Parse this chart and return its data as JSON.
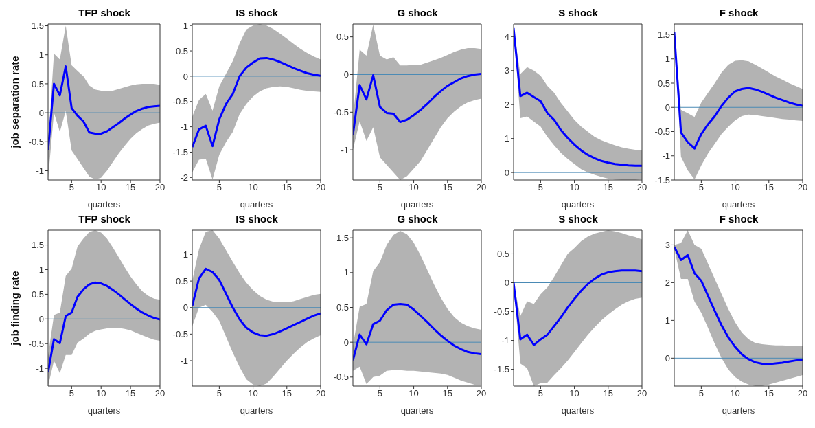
{
  "chart_data": [
    {
      "type": "line",
      "title": "TFP shock",
      "xlabel": "quarters",
      "ylabel": "job separation rate",
      "x": [
        1,
        2,
        3,
        4,
        5,
        6,
        7,
        8,
        9,
        10,
        11,
        12,
        13,
        14,
        15,
        16,
        17,
        18,
        19,
        20
      ],
      "xlim": [
        1,
        20
      ],
      "xticks": [
        5,
        10,
        15,
        20
      ],
      "ylim": [
        -1.16,
        1.53
      ],
      "yticks": [
        -1,
        -0.5,
        0,
        0.5,
        1,
        1.5
      ],
      "ref_lines": [
        {
          "axis": "y",
          "value": 0,
          "color": "#4a8ab5"
        }
      ],
      "series": [
        {
          "color": "#0000ff",
          "values": [
            -0.65,
            0.5,
            0.3,
            0.8,
            0.08,
            -0.05,
            -0.15,
            -0.34,
            -0.36,
            -0.36,
            -0.32,
            -0.25,
            -0.18,
            -0.1,
            -0.03,
            0.03,
            0.07,
            0.1,
            0.11,
            0.12
          ],
          "lower": [
            -1.15,
            0.0,
            -0.33,
            0.03,
            -0.65,
            -0.8,
            -0.95,
            -1.1,
            -1.15,
            -1.12,
            -1.0,
            -0.85,
            -0.7,
            -0.57,
            -0.45,
            -0.35,
            -0.28,
            -0.22,
            -0.19,
            -0.17
          ],
          "upper": [
            -0.55,
            1.02,
            0.92,
            1.5,
            0.82,
            0.72,
            0.63,
            0.47,
            0.4,
            0.38,
            0.37,
            0.38,
            0.41,
            0.44,
            0.47,
            0.49,
            0.5,
            0.5,
            0.5,
            0.48
          ]
        }
      ]
    },
    {
      "type": "line",
      "title": "IS shock",
      "xlabel": "quarters",
      "x": [
        1,
        2,
        3,
        4,
        5,
        6,
        7,
        8,
        9,
        10,
        11,
        12,
        13,
        14,
        15,
        16,
        17,
        18,
        19,
        20
      ],
      "xlim": [
        1,
        20
      ],
      "xticks": [
        5,
        10,
        15,
        20
      ],
      "ylim": [
        -2.05,
        1.03
      ],
      "yticks": [
        -2,
        -1.5,
        -1,
        -0.5,
        0,
        0.5,
        1
      ],
      "ref_lines": [
        {
          "axis": "y",
          "value": 0,
          "color": "#4a8ab5"
        }
      ],
      "series": [
        {
          "color": "#0000ff",
          "values": [
            -1.4,
            -1.05,
            -0.98,
            -1.38,
            -0.85,
            -0.55,
            -0.35,
            0.0,
            0.17,
            0.27,
            0.35,
            0.36,
            0.33,
            0.28,
            0.22,
            0.16,
            0.11,
            0.06,
            0.03,
            0.01
          ],
          "lower": [
            -1.9,
            -1.65,
            -1.63,
            -2.04,
            -1.55,
            -1.3,
            -1.1,
            -0.75,
            -0.55,
            -0.4,
            -0.3,
            -0.24,
            -0.21,
            -0.2,
            -0.21,
            -0.24,
            -0.27,
            -0.29,
            -0.3,
            -0.31
          ],
          "upper": [
            -0.8,
            -0.47,
            -0.35,
            -0.68,
            -0.2,
            0.05,
            0.3,
            0.65,
            0.92,
            1.0,
            1.03,
            1.0,
            0.93,
            0.84,
            0.74,
            0.64,
            0.54,
            0.46,
            0.39,
            0.33
          ]
        }
      ]
    },
    {
      "type": "line",
      "title": "G shock",
      "xlabel": "quarters",
      "x": [
        1,
        2,
        3,
        4,
        5,
        6,
        7,
        8,
        9,
        10,
        11,
        12,
        13,
        14,
        15,
        16,
        17,
        18,
        19,
        20
      ],
      "xlim": [
        1,
        20
      ],
      "xticks": [
        5,
        10,
        15,
        20
      ],
      "ylim": [
        -1.4,
        0.67
      ],
      "yticks": [
        -1,
        -0.5,
        0,
        0.5
      ],
      "ref_lines": [
        {
          "axis": "y",
          "value": 0,
          "color": "#4a8ab5"
        }
      ],
      "series": [
        {
          "color": "#0000ff",
          "values": [
            -0.8,
            -0.14,
            -0.33,
            -0.01,
            -0.43,
            -0.51,
            -0.52,
            -0.63,
            -0.6,
            -0.54,
            -0.47,
            -0.39,
            -0.3,
            -0.22,
            -0.15,
            -0.1,
            -0.05,
            -0.02,
            0.0,
            0.01
          ],
          "lower": [
            -1.0,
            -0.62,
            -0.88,
            -0.7,
            -1.1,
            -1.2,
            -1.3,
            -1.4,
            -1.35,
            -1.25,
            -1.15,
            -1.0,
            -0.85,
            -0.7,
            -0.58,
            -0.49,
            -0.42,
            -0.37,
            -0.34,
            -0.32
          ],
          "upper": [
            -0.6,
            0.33,
            0.25,
            0.66,
            0.25,
            0.2,
            0.23,
            0.12,
            0.12,
            0.13,
            0.13,
            0.16,
            0.19,
            0.22,
            0.26,
            0.3,
            0.33,
            0.35,
            0.35,
            0.34
          ]
        }
      ]
    },
    {
      "type": "line",
      "title": "S shock",
      "xlabel": "quarters",
      "x": [
        1,
        2,
        3,
        4,
        5,
        6,
        7,
        8,
        9,
        10,
        11,
        12,
        13,
        14,
        15,
        16,
        17,
        18,
        19,
        20
      ],
      "xlim": [
        1,
        20
      ],
      "xticks": [
        5,
        10,
        15,
        20
      ],
      "ylim": [
        -0.22,
        4.37
      ],
      "yticks": [
        0,
        1,
        2,
        3,
        4
      ],
      "ref_lines": [
        {
          "axis": "y",
          "value": 0,
          "color": "#4a8ab5"
        }
      ],
      "series": [
        {
          "color": "#0000ff",
          "values": [
            4.25,
            2.25,
            2.35,
            2.22,
            2.1,
            1.75,
            1.55,
            1.25,
            1.02,
            0.82,
            0.65,
            0.52,
            0.42,
            0.34,
            0.29,
            0.25,
            0.23,
            0.21,
            0.2,
            0.2
          ],
          "lower": [
            4.25,
            1.6,
            1.65,
            1.5,
            1.35,
            1.05,
            0.8,
            0.58,
            0.4,
            0.25,
            0.1,
            0.0,
            -0.07,
            -0.13,
            -0.18,
            -0.21,
            -0.22,
            -0.22,
            -0.22,
            -0.2
          ],
          "upper": [
            4.25,
            2.9,
            3.1,
            3.0,
            2.85,
            2.55,
            2.35,
            2.05,
            1.8,
            1.55,
            1.35,
            1.2,
            1.05,
            0.95,
            0.87,
            0.8,
            0.74,
            0.7,
            0.67,
            0.65
          ]
        }
      ]
    },
    {
      "type": "line",
      "title": "F shock",
      "xlabel": "quarters",
      "x": [
        1,
        2,
        3,
        4,
        5,
        6,
        7,
        8,
        9,
        10,
        11,
        12,
        13,
        14,
        15,
        16,
        17,
        18,
        19,
        20
      ],
      "xlim": [
        1,
        20
      ],
      "xticks": [
        5,
        10,
        15,
        20
      ],
      "ylim": [
        -1.5,
        1.72
      ],
      "yticks": [
        -1.5,
        -1,
        -0.5,
        0,
        0.5,
        1,
        1.5
      ],
      "ref_lines": [
        {
          "axis": "y",
          "value": 0,
          "color": "#4a8ab5"
        }
      ],
      "series": [
        {
          "color": "#0000ff",
          "values": [
            1.55,
            -0.52,
            -0.72,
            -0.85,
            -0.55,
            -0.35,
            -0.18,
            0.03,
            0.2,
            0.33,
            0.38,
            0.4,
            0.37,
            0.32,
            0.26,
            0.2,
            0.15,
            0.1,
            0.06,
            0.03
          ],
          "lower": [
            1.55,
            -1.02,
            -1.3,
            -1.49,
            -1.2,
            -0.95,
            -0.75,
            -0.55,
            -0.4,
            -0.27,
            -0.18,
            -0.15,
            -0.16,
            -0.18,
            -0.2,
            -0.22,
            -0.24,
            -0.25,
            -0.27,
            -0.28
          ],
          "upper": [
            1.55,
            -0.05,
            -0.12,
            -0.2,
            0.1,
            0.3,
            0.5,
            0.72,
            0.88,
            0.96,
            0.97,
            0.95,
            0.88,
            0.8,
            0.72,
            0.64,
            0.57,
            0.5,
            0.44,
            0.38
          ]
        }
      ]
    },
    {
      "type": "line",
      "title": "TFP shock",
      "xlabel": "quarters",
      "ylabel": "job finding rate",
      "x": [
        1,
        2,
        3,
        4,
        5,
        6,
        7,
        8,
        9,
        10,
        11,
        12,
        13,
        14,
        15,
        16,
        17,
        18,
        19,
        20
      ],
      "xlim": [
        1,
        20
      ],
      "xticks": [
        5,
        10,
        15,
        20
      ],
      "ylim": [
        -1.36,
        1.8
      ],
      "yticks": [
        -1,
        -0.5,
        0,
        0.5,
        1,
        1.5
      ],
      "ref_lines": [
        {
          "axis": "y",
          "value": 0,
          "color": "#4a8ab5"
        }
      ],
      "series": [
        {
          "color": "#0000ff",
          "values": [
            -1.08,
            -0.41,
            -0.49,
            0.06,
            0.13,
            0.45,
            0.6,
            0.7,
            0.74,
            0.72,
            0.67,
            0.59,
            0.5,
            0.4,
            0.3,
            0.21,
            0.13,
            0.07,
            0.02,
            -0.01
          ],
          "lower": [
            -1.36,
            -0.85,
            -1.1,
            -0.73,
            -0.73,
            -0.48,
            -0.4,
            -0.3,
            -0.24,
            -0.21,
            -0.19,
            -0.18,
            -0.18,
            -0.2,
            -0.23,
            -0.28,
            -0.33,
            -0.38,
            -0.42,
            -0.44
          ],
          "upper": [
            -0.75,
            0.08,
            0.13,
            0.87,
            1.02,
            1.47,
            1.63,
            1.76,
            1.8,
            1.75,
            1.63,
            1.45,
            1.25,
            1.05,
            0.86,
            0.7,
            0.56,
            0.47,
            0.41,
            0.39
          ]
        }
      ]
    },
    {
      "type": "line",
      "title": "IS shock",
      "xlabel": "quarters",
      "x": [
        1,
        2,
        3,
        4,
        5,
        6,
        7,
        8,
        9,
        10,
        11,
        12,
        13,
        14,
        15,
        16,
        17,
        18,
        19,
        20
      ],
      "xlim": [
        1,
        20
      ],
      "xticks": [
        5,
        10,
        15,
        20
      ],
      "ylim": [
        -1.48,
        1.46
      ],
      "yticks": [
        -1,
        -0.5,
        0,
        0.5,
        1
      ],
      "ref_lines": [
        {
          "axis": "y",
          "value": 0,
          "color": "#4a8ab5"
        }
      ],
      "series": [
        {
          "color": "#0000ff",
          "values": [
            0.03,
            0.55,
            0.73,
            0.67,
            0.52,
            0.26,
            0.0,
            -0.22,
            -0.38,
            -0.47,
            -0.52,
            -0.53,
            -0.5,
            -0.45,
            -0.39,
            -0.33,
            -0.27,
            -0.21,
            -0.15,
            -0.11
          ],
          "lower": [
            -0.35,
            0.0,
            0.05,
            -0.08,
            -0.25,
            -0.55,
            -0.85,
            -1.12,
            -1.35,
            -1.45,
            -1.48,
            -1.43,
            -1.3,
            -1.15,
            -1.0,
            -0.87,
            -0.75,
            -0.65,
            -0.58,
            -0.52
          ],
          "upper": [
            0.5,
            1.1,
            1.43,
            1.46,
            1.3,
            1.08,
            0.86,
            0.65,
            0.47,
            0.33,
            0.22,
            0.15,
            0.11,
            0.1,
            0.1,
            0.12,
            0.16,
            0.2,
            0.24,
            0.26
          ]
        }
      ]
    },
    {
      "type": "line",
      "title": "G shock",
      "xlabel": "quarters",
      "x": [
        1,
        2,
        3,
        4,
        5,
        6,
        7,
        8,
        9,
        10,
        11,
        12,
        13,
        14,
        15,
        16,
        17,
        18,
        19,
        20
      ],
      "xlim": [
        1,
        20
      ],
      "xticks": [
        5,
        10,
        15,
        20
      ],
      "ylim": [
        -0.63,
        1.61
      ],
      "yticks": [
        -0.5,
        0,
        0.5,
        1,
        1.5
      ],
      "ref_lines": [
        {
          "axis": "y",
          "value": 0,
          "color": "#4a8ab5"
        }
      ],
      "series": [
        {
          "color": "#0000ff",
          "values": [
            -0.26,
            0.11,
            -0.03,
            0.26,
            0.31,
            0.46,
            0.54,
            0.55,
            0.54,
            0.47,
            0.38,
            0.29,
            0.19,
            0.1,
            0.02,
            -0.05,
            -0.1,
            -0.14,
            -0.16,
            -0.17
          ],
          "lower": [
            -0.41,
            -0.35,
            -0.6,
            -0.5,
            -0.48,
            -0.41,
            -0.4,
            -0.4,
            -0.41,
            -0.41,
            -0.42,
            -0.43,
            -0.44,
            -0.45,
            -0.47,
            -0.51,
            -0.55,
            -0.58,
            -0.61,
            -0.62
          ],
          "upper": [
            -0.05,
            0.51,
            0.55,
            1.02,
            1.15,
            1.4,
            1.54,
            1.6,
            1.55,
            1.43,
            1.25,
            1.04,
            0.83,
            0.64,
            0.48,
            0.36,
            0.28,
            0.23,
            0.2,
            0.18
          ]
        }
      ]
    },
    {
      "type": "line",
      "title": "S shock",
      "xlabel": "quarters",
      "x": [
        1,
        2,
        3,
        4,
        5,
        6,
        7,
        8,
        9,
        10,
        11,
        12,
        13,
        14,
        15,
        16,
        17,
        18,
        19,
        20
      ],
      "xlim": [
        1,
        20
      ],
      "xticks": [
        5,
        10,
        15,
        20
      ],
      "ylim": [
        -1.79,
        0.91
      ],
      "yticks": [
        -1.5,
        -1,
        -0.5,
        0,
        0.5
      ],
      "ref_lines": [
        {
          "axis": "y",
          "value": 0,
          "color": "#4a8ab5"
        }
      ],
      "series": [
        {
          "color": "#0000ff",
          "values": [
            0.0,
            -0.98,
            -0.9,
            -1.08,
            -0.98,
            -0.9,
            -0.75,
            -0.6,
            -0.43,
            -0.28,
            -0.14,
            -0.02,
            0.07,
            0.14,
            0.18,
            0.2,
            0.21,
            0.21,
            0.21,
            0.2
          ],
          "lower": [
            0.0,
            -1.4,
            -1.48,
            -1.79,
            -1.74,
            -1.73,
            -1.6,
            -1.48,
            -1.35,
            -1.2,
            -1.05,
            -0.9,
            -0.77,
            -0.65,
            -0.55,
            -0.46,
            -0.38,
            -0.32,
            -0.28,
            -0.26
          ],
          "upper": [
            0.0,
            -0.58,
            -0.32,
            -0.37,
            -0.2,
            -0.08,
            0.1,
            0.3,
            0.5,
            0.6,
            0.72,
            0.8,
            0.85,
            0.88,
            0.91,
            0.89,
            0.86,
            0.82,
            0.79,
            0.75
          ]
        }
      ]
    },
    {
      "type": "line",
      "title": "F shock",
      "xlabel": "quarters",
      "x": [
        1,
        2,
        3,
        4,
        5,
        6,
        7,
        8,
        9,
        10,
        11,
        12,
        13,
        14,
        15,
        16,
        17,
        18,
        19,
        20
      ],
      "xlim": [
        1,
        20
      ],
      "xticks": [
        5,
        10,
        15,
        20
      ],
      "ylim": [
        -0.74,
        3.39
      ],
      "yticks": [
        0,
        1,
        2,
        3
      ],
      "ref_lines": [
        {
          "axis": "y",
          "value": 0,
          "color": "#4a8ab5"
        }
      ],
      "series": [
        {
          "color": "#0000ff",
          "values": [
            2.95,
            2.6,
            2.73,
            2.25,
            2.05,
            1.65,
            1.25,
            0.87,
            0.55,
            0.3,
            0.1,
            -0.03,
            -0.11,
            -0.15,
            -0.16,
            -0.14,
            -0.12,
            -0.09,
            -0.06,
            -0.04
          ],
          "lower": [
            2.9,
            2.1,
            2.1,
            1.5,
            1.2,
            0.8,
            0.38,
            0.0,
            -0.3,
            -0.5,
            -0.62,
            -0.7,
            -0.74,
            -0.74,
            -0.7,
            -0.65,
            -0.6,
            -0.55,
            -0.5,
            -0.45
          ],
          "upper": [
            3.0,
            3.05,
            3.39,
            3.0,
            2.9,
            2.5,
            2.1,
            1.7,
            1.3,
            0.95,
            0.68,
            0.5,
            0.4,
            0.37,
            0.35,
            0.34,
            0.34,
            0.33,
            0.33,
            0.33
          ]
        }
      ]
    }
  ]
}
